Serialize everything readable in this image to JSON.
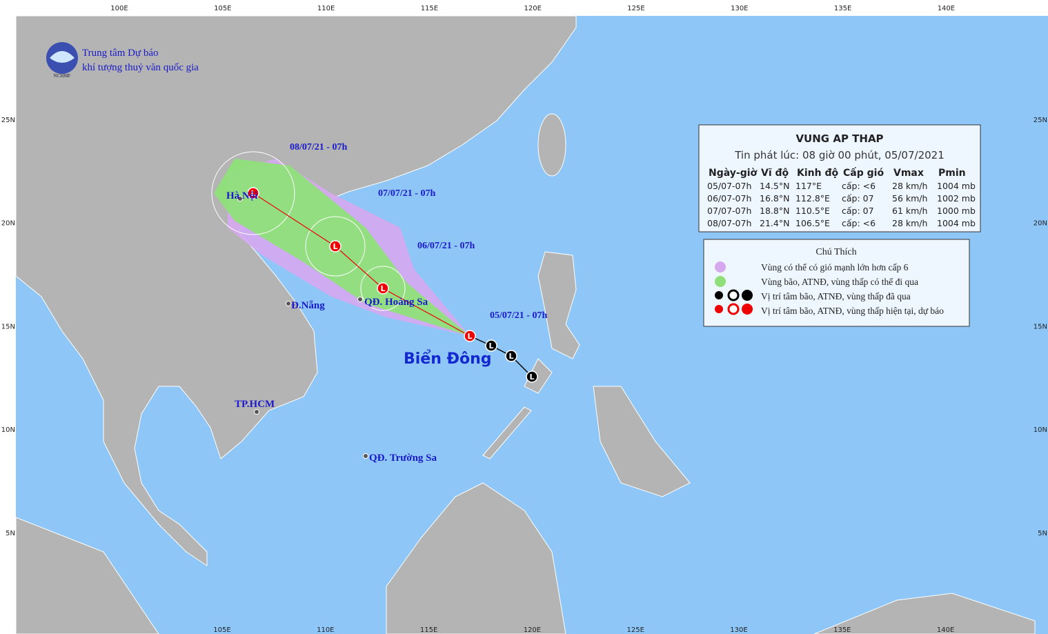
{
  "header": {
    "org_line1": "Trung tâm Dự báo",
    "org_line2": "khí tượng thuỷ văn quốc gia",
    "logo_text": "NCHMF"
  },
  "axes": {
    "top": [
      "100E",
      "105E",
      "110E",
      "115E",
      "120E",
      "125E",
      "130E",
      "135E",
      "140E"
    ],
    "bottom": [
      "105E",
      "110E",
      "115E",
      "120E",
      "125E",
      "130E",
      "135E",
      "140E"
    ],
    "left": [
      "25N",
      "20N",
      "15N",
      "10N",
      "5N"
    ],
    "right": [
      "25N",
      "20N",
      "15N",
      "10N",
      "5N"
    ]
  },
  "track_labels": [
    "08/07/21 - 07h",
    "07/07/21 - 07h",
    "06/07/21 - 07h",
    "05/07/21 - 07h"
  ],
  "track_symbol": "L",
  "places": [
    "Hà Nội",
    "Đ.Nẵng",
    "QĐ. Hoàng Sa",
    "TP.HCM",
    "QĐ. Trường Sa"
  ],
  "sea_label": "Biển Đông",
  "bulletin": {
    "title": "VUNG AP THAP",
    "issued": "Tin phát lúc: 08 giờ 00 phút, 05/07/2021",
    "columns": [
      "Ngày-giờ",
      "Vĩ độ",
      "Kinh độ",
      "Cấp gió",
      "Vmax",
      "Pmin"
    ],
    "rows": [
      [
        "05/07-07h",
        "14.5°N",
        "117°E",
        "cấp: <6",
        "28 km/h",
        "1004 mb"
      ],
      [
        "06/07-07h",
        "16.8°N",
        "112.8°E",
        "cấp: 07",
        "56 km/h",
        "1002 mb"
      ],
      [
        "07/07-07h",
        "18.8°N",
        "110.5°E",
        "cấp: 07",
        "61 km/h",
        "1000 mb"
      ],
      [
        "08/07-07h",
        "21.4°N",
        "106.5°E",
        "cấp: <6",
        "28 km/h",
        "1004 mb"
      ]
    ]
  },
  "legend": {
    "title": "Chú Thích",
    "items": [
      "Vùng có thể có gió mạnh lớn hơn cấp 6",
      "Vùng bão, ATNĐ, vùng thấp có thể đi qua",
      "Vị trí tâm bão, ATNĐ, vùng thấp đã qua",
      "Vị trí tâm bão, ATNĐ, vùng thấp hiện tại, dự báo"
    ]
  }
}
